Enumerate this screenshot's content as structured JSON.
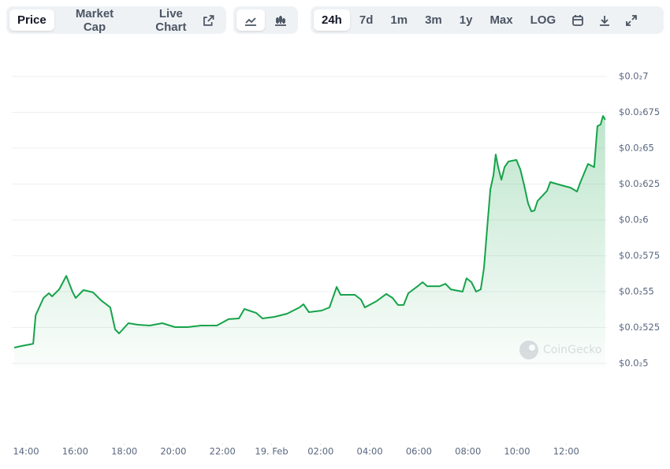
{
  "toolbar": {
    "tabs": [
      "Price",
      "Market Cap",
      "Live Chart"
    ],
    "ranges": [
      "24h",
      "7d",
      "1m",
      "3m",
      "1y",
      "Max",
      "LOG"
    ]
  },
  "watermark": "CoinGecko",
  "chart_data": {
    "type": "line",
    "color": "#16a34a",
    "grid": true,
    "x": [
      13.52,
      13.81,
      14.29,
      14.39,
      14.71,
      14.93,
      15.06,
      15.35,
      15.64,
      15.89,
      16.02,
      16.34,
      16.73,
      17.05,
      17.43,
      17.63,
      17.79,
      18.17,
      18.56,
      19.04,
      19.55,
      20.07,
      20.58,
      21.13,
      21.77,
      22.25,
      22.67,
      22.89,
      23.37,
      23.63,
      24.11,
      24.63,
      25.14,
      25.3,
      25.52,
      26.04,
      26.36,
      26.65,
      26.81,
      27.39,
      27.64,
      27.8,
      28.28,
      28.67,
      28.93,
      29.15,
      29.38,
      29.57,
      29.95,
      30.15,
      30.34,
      30.85,
      31.08,
      31.3,
      31.78,
      31.94,
      32.14,
      32.33,
      32.52,
      32.65,
      32.78,
      32.91,
      33.04,
      33.13,
      33.23,
      33.36,
      33.49,
      33.65,
      33.97,
      34.13,
      34.29,
      34.45,
      34.58,
      34.71,
      34.83,
      35.22,
      35.35,
      35.8,
      36.18,
      36.44,
      36.57,
      36.89,
      37.14,
      37.27,
      37.4,
      37.5,
      37.59
    ],
    "values": [
      0.00511,
      0.005121,
      0.005137,
      0.005335,
      0.005456,
      0.005489,
      0.005467,
      0.005516,
      0.00561,
      0.0055,
      0.005456,
      0.005511,
      0.005495,
      0.00544,
      0.00539,
      0.005236,
      0.005209,
      0.00528,
      0.005269,
      0.005264,
      0.00528,
      0.005253,
      0.005253,
      0.005264,
      0.005264,
      0.005308,
      0.005313,
      0.005379,
      0.005352,
      0.005313,
      0.005324,
      0.005346,
      0.00539,
      0.005412,
      0.005357,
      0.005368,
      0.00539,
      0.005533,
      0.005478,
      0.005478,
      0.005445,
      0.00539,
      0.005434,
      0.005484,
      0.005456,
      0.005407,
      0.005407,
      0.005489,
      0.005538,
      0.005566,
      0.005538,
      0.005538,
      0.005555,
      0.005516,
      0.0055,
      0.005593,
      0.005566,
      0.0055,
      0.005516,
      0.005665,
      0.00594,
      0.006214,
      0.006313,
      0.006456,
      0.006368,
      0.00628,
      0.006368,
      0.006407,
      0.006418,
      0.006352,
      0.006242,
      0.006115,
      0.00606,
      0.006066,
      0.006132,
      0.006203,
      0.006264,
      0.006242,
      0.006225,
      0.006198,
      0.006258,
      0.00639,
      0.006368,
      0.006654,
      0.006665,
      0.006725,
      0.006698
    ],
    "xlim": [
      13.42,
      37.66
    ],
    "xticks": [
      {
        "value": 14,
        "label": "14:00"
      },
      {
        "value": 16,
        "label": "16:00"
      },
      {
        "value": 18,
        "label": "18:00"
      },
      {
        "value": 20,
        "label": "20:00"
      },
      {
        "value": 22,
        "label": "22:00"
      },
      {
        "value": 24,
        "label": "19. Feb"
      },
      {
        "value": 26,
        "label": "02:00"
      },
      {
        "value": 28,
        "label": "04:00"
      },
      {
        "value": 30,
        "label": "06:00"
      },
      {
        "value": 32,
        "label": "08:00"
      },
      {
        "value": 34,
        "label": "10:00"
      },
      {
        "value": 36,
        "label": "12:00"
      }
    ],
    "ylim": [
      0.005,
      0.007
    ],
    "yticks": [
      {
        "value": 0.005,
        "label": "$0.0₂5"
      },
      {
        "value": 0.00525,
        "label": "$0.0₂525"
      },
      {
        "value": 0.0055,
        "label": "$0.0₂55"
      },
      {
        "value": 0.00575,
        "label": "$0.0₂575"
      },
      {
        "value": 0.006,
        "label": "$0.0₂6"
      },
      {
        "value": 0.00625,
        "label": "$0.0₂625"
      },
      {
        "value": 0.0065,
        "label": "$0.0₂65"
      },
      {
        "value": 0.00675,
        "label": "$0.0₂675"
      },
      {
        "value": 0.007,
        "label": "$0.0₂7"
      }
    ]
  }
}
